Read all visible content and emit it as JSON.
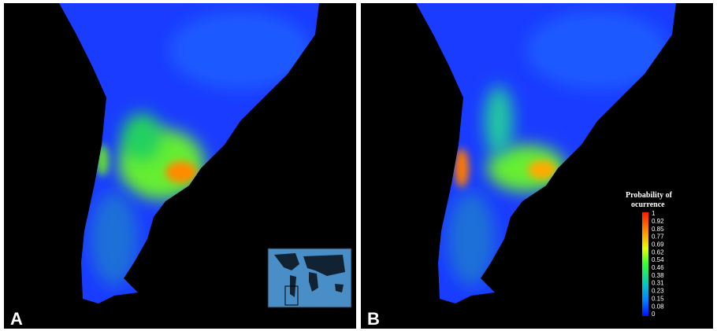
{
  "panels": [
    {
      "label": "A"
    },
    {
      "label": "B"
    }
  ],
  "legend": {
    "title_line1": "Probability of",
    "title_line2": "ocurrence",
    "ticks": [
      1,
      0.92,
      0.85,
      0.77,
      0.69,
      0.62,
      0.54,
      0.46,
      0.38,
      0.31,
      0.23,
      0.15,
      0.08,
      0
    ]
  }
}
